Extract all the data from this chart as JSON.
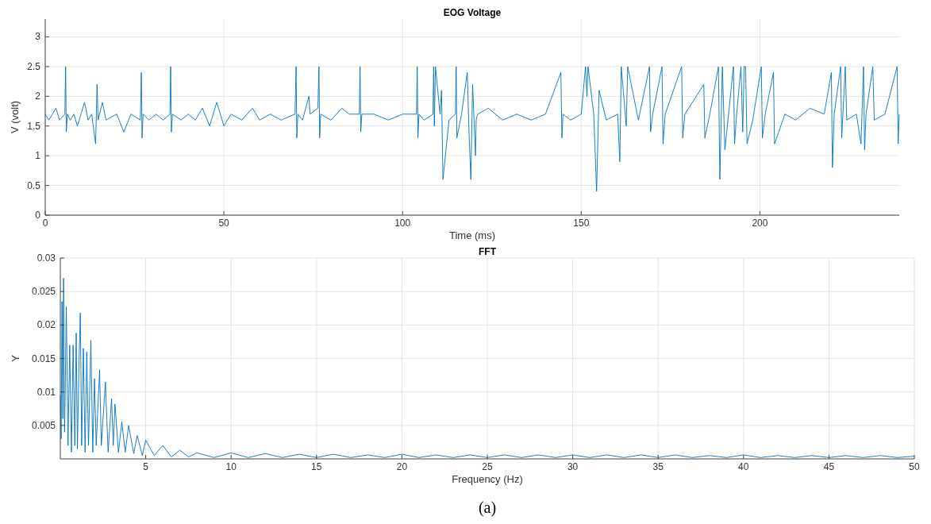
{
  "chart_data": [
    {
      "type": "line",
      "title": "EOG Voltage",
      "xlabel": "Time (ms)",
      "ylabel": "V (volt)",
      "xlim": [
        0,
        239
      ],
      "ylim": [
        0,
        3.3
      ],
      "xticks": [
        0,
        50,
        100,
        150,
        200
      ],
      "yticks": [
        0,
        0.5,
        1,
        1.5,
        2,
        2.5,
        3
      ],
      "grid": true,
      "line_style": "solid",
      "series": [
        {
          "color": "#0072bd",
          "x": [
            0,
            1,
            2,
            3,
            4,
            5.5,
            5.7,
            5.9,
            6.2,
            7,
            8,
            9,
            10,
            11,
            12,
            13,
            14.1,
            14.5,
            14.8,
            16,
            17,
            20,
            22,
            24,
            26.6,
            26.9,
            27.1,
            27.4,
            29,
            31,
            33,
            34.9,
            35.1,
            35.3,
            35.6,
            38,
            40,
            42,
            44,
            46,
            48,
            50,
            52,
            55,
            58,
            60,
            63,
            66,
            69.9,
            70.2,
            70.4,
            70.7,
            72,
            73.8,
            74.1,
            76.3,
            76.6,
            76.8,
            77.1,
            80,
            83,
            85,
            87.9,
            88.1,
            88.3,
            88.6,
            92,
            96,
            100,
            103.9,
            104.1,
            104.3,
            104.6,
            106,
            108.5,
            108.7,
            108.9,
            109.2,
            110.5,
            110.9,
            111.3,
            113,
            114.8,
            115,
            115.2,
            116.5,
            118.1,
            118.6,
            119.1,
            119.6,
            120.4,
            120.6,
            121,
            124,
            128,
            132,
            136,
            140,
            144.3,
            144.6,
            144.9,
            147,
            150,
            151.2,
            151.6,
            151.9,
            153.5,
            154.3,
            155,
            157,
            160.2,
            160.8,
            161.2,
            162.6,
            163,
            166,
            169.1,
            169.4,
            170,
            172.6,
            172.9,
            173.5,
            178.1,
            178.4,
            179,
            184.3,
            184.6,
            186,
            188.4,
            188.8,
            189.5,
            190.2,
            192.6,
            192.9,
            193.5,
            194.7,
            195.2,
            195.6,
            196,
            196.4,
            198,
            200.4,
            200.7,
            201.5,
            203.8,
            204.1,
            207,
            210,
            214,
            218,
            220,
            220.3,
            220.8,
            222.6,
            222.9,
            223.9,
            224.3,
            227,
            228.3,
            229,
            229.3,
            229.7,
            231.6,
            232,
            235,
            238.4,
            238.7,
            239
          ],
          "values": [
            1.7,
            1.6,
            1.7,
            1.8,
            1.6,
            1.7,
            2.5,
            1.4,
            1.7,
            1.6,
            1.7,
            1.5,
            1.7,
            1.9,
            1.6,
            1.7,
            1.2,
            2.2,
            1.6,
            1.9,
            1.6,
            1.7,
            1.4,
            1.7,
            1.6,
            2.4,
            1.3,
            1.7,
            1.6,
            1.7,
            1.6,
            1.7,
            2.5,
            1.4,
            1.7,
            1.6,
            1.7,
            1.6,
            1.8,
            1.5,
            1.9,
            1.5,
            1.7,
            1.6,
            1.8,
            1.6,
            1.7,
            1.6,
            1.7,
            2.5,
            1.3,
            1.7,
            1.6,
            2.0,
            1.7,
            1.8,
            2.5,
            1.3,
            1.7,
            1.6,
            1.8,
            1.7,
            1.7,
            2.5,
            1.4,
            1.7,
            1.7,
            1.6,
            1.7,
            1.7,
            2.5,
            1.3,
            1.7,
            1.6,
            1.7,
            2.5,
            1.5,
            2.5,
            1.7,
            2.1,
            0.6,
            1.6,
            1.7,
            2.5,
            1.3,
            1.7,
            2.4,
            1.4,
            0.6,
            2.2,
            1.0,
            1.6,
            1.7,
            1.8,
            1.6,
            1.7,
            1.6,
            1.7,
            2.4,
            1.3,
            1.7,
            1.6,
            1.7,
            2.5,
            2.0,
            2.5,
            1.7,
            0.4,
            2.1,
            1.6,
            1.7,
            0.9,
            2.5,
            1.5,
            2.5,
            1.6,
            2.5,
            1.4,
            1.7,
            2.5,
            1.2,
            1.7,
            2.5,
            1.3,
            1.7,
            2.2,
            1.3,
            1.7,
            2.5,
            0.6,
            2.5,
            1.1,
            2.5,
            1.2,
            1.7,
            2.5,
            1.4,
            2.5,
            2.5,
            1.2,
            1.6,
            2.5,
            1.3,
            1.7,
            2.4,
            1.2,
            1.7,
            1.6,
            1.8,
            1.7,
            2.4,
            0.8,
            1.7,
            2.5,
            1.3,
            2.5,
            1.6,
            1.7,
            1.2,
            2.5,
            1.1,
            1.7,
            2.5,
            1.6,
            1.7,
            2.5,
            1.2,
            1.7
          ]
        }
      ]
    },
    {
      "type": "line",
      "title": "FFT",
      "xlabel": "Frequency (Hz)",
      "ylabel": "Y",
      "xlim": [
        0,
        50
      ],
      "ylim": [
        0,
        0.03
      ],
      "xticks": [
        5,
        10,
        15,
        20,
        25,
        30,
        35,
        40,
        45,
        50
      ],
      "yticks": [
        0.005,
        0.01,
        0.015,
        0.02,
        0.025,
        0.03
      ],
      "grid": true,
      "line_style": "solid",
      "annotations": [
        "(a)"
      ],
      "series": [
        {
          "color": "#0072bd",
          "x": [
            0,
            0.05,
            0.1,
            0.15,
            0.19,
            0.25,
            0.35,
            0.45,
            0.55,
            0.65,
            0.75,
            0.85,
            0.93,
            1.0,
            1.1,
            1.17,
            1.25,
            1.35,
            1.45,
            1.55,
            1.65,
            1.79,
            1.9,
            2.0,
            2.1,
            2.3,
            2.4,
            2.64,
            2.8,
            3.0,
            3.1,
            3.2,
            3.4,
            3.6,
            3.8,
            4.0,
            4.3,
            4.5,
            4.8,
            5.0,
            5.5,
            6.0,
            6.5,
            7.0,
            7.5,
            8.0,
            9,
            10,
            11,
            12,
            13,
            14,
            15,
            16,
            17,
            18,
            19,
            20,
            21,
            22,
            23,
            24,
            25,
            26,
            27,
            28,
            29,
            30,
            31,
            32,
            33,
            34,
            35,
            36,
            37,
            38,
            39,
            40,
            41,
            42,
            43,
            44,
            45,
            46,
            47,
            48,
            49,
            50
          ],
          "values": [
            0.0095,
            0.003,
            0.0235,
            0.006,
            0.027,
            0.004,
            0.0227,
            0.002,
            0.017,
            0.001,
            0.017,
            0.002,
            0.0188,
            0.0015,
            0.015,
            0.0218,
            0.002,
            0.0165,
            0.001,
            0.016,
            0.002,
            0.0177,
            0.001,
            0.012,
            0.002,
            0.0133,
            0.002,
            0.0115,
            0.001,
            0.009,
            0.002,
            0.0082,
            0.001,
            0.0055,
            0.001,
            0.005,
            0.0008,
            0.0035,
            0.0005,
            0.0028,
            0.0005,
            0.002,
            0.0003,
            0.0013,
            0.0003,
            0.0009,
            0.0002,
            0.0009,
            0.0002,
            0.0008,
            0.0002,
            0.0007,
            0.0002,
            0.0007,
            0.0002,
            0.0006,
            0.0002,
            0.0007,
            0.0002,
            0.0006,
            0.0002,
            0.0006,
            0.0002,
            0.0006,
            0.0002,
            0.0006,
            0.0002,
            0.0006,
            0.0002,
            0.0006,
            0.0002,
            0.0006,
            0.0002,
            0.0006,
            0.0002,
            0.0005,
            0.0002,
            0.0006,
            0.0002,
            0.0005,
            0.0002,
            0.0005,
            0.0002,
            0.0005,
            0.0002,
            0.0005,
            0.0002,
            0.0004
          ]
        }
      ]
    }
  ]
}
